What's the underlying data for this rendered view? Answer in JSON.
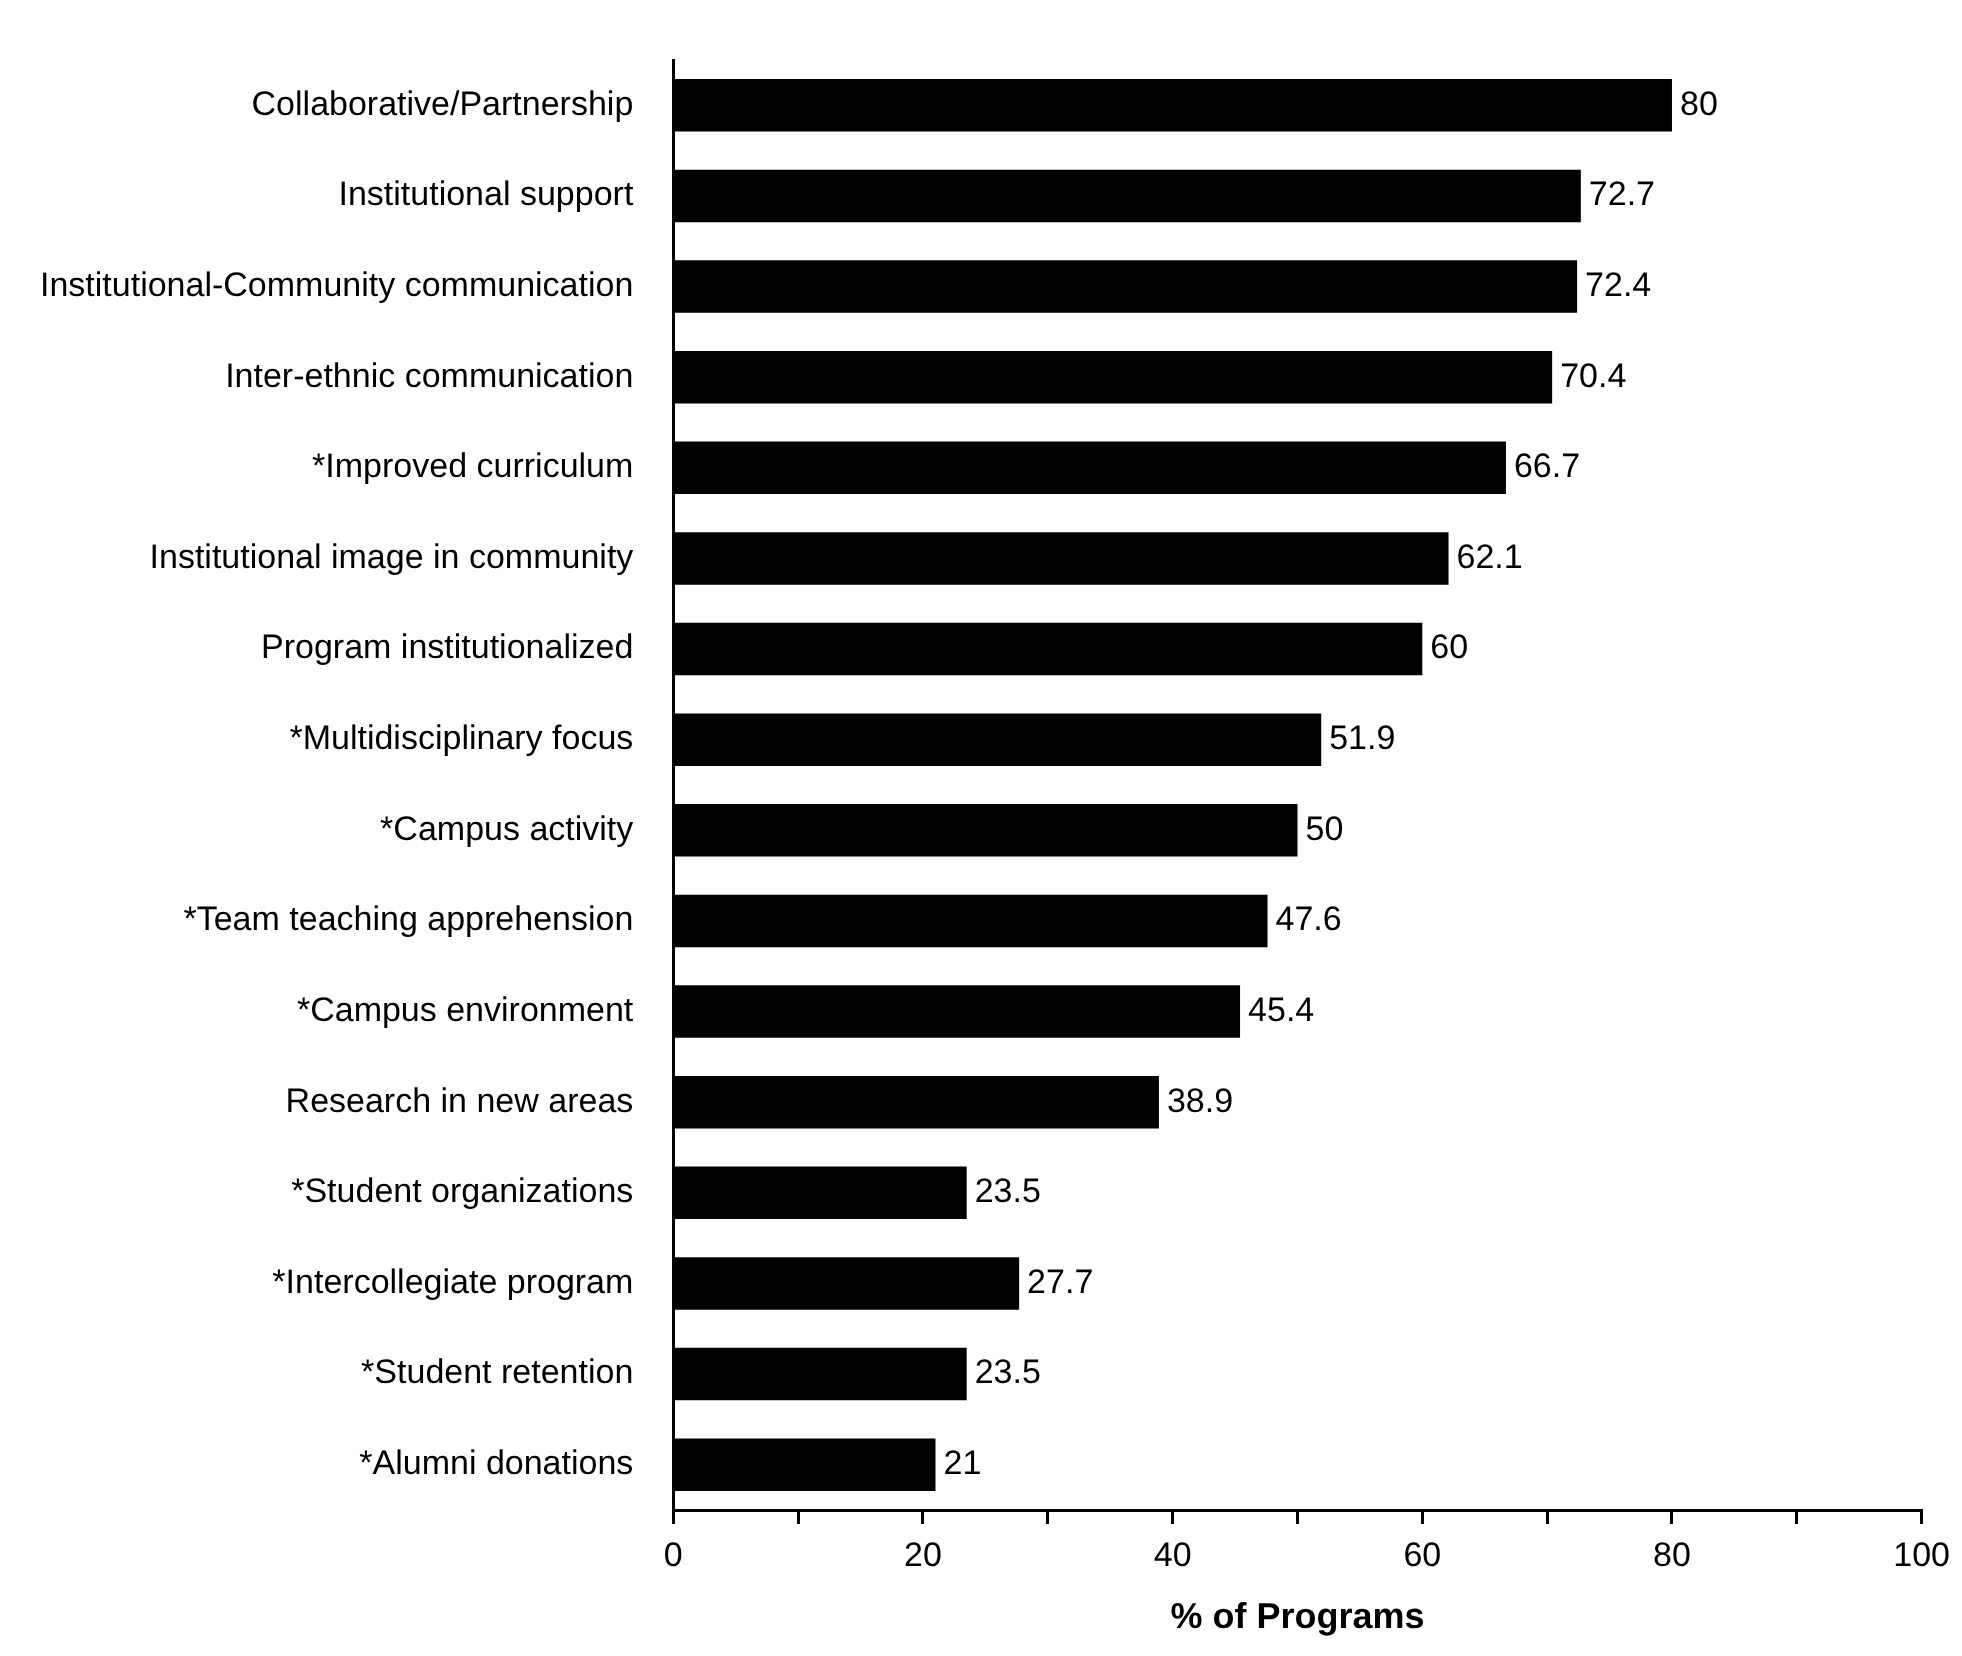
{
  "chart_data": {
    "type": "bar",
    "orientation": "horizontal",
    "xlabel": "% of Programs",
    "categories": [
      "Collaborative/Partnership",
      "Institutional support",
      "Institutional-Community communication",
      "Inter-ethnic communication",
      "*Improved curriculum",
      "Institutional image in community",
      "Program institutionalized",
      "*Multidisciplinary focus",
      "*Campus activity",
      "*Team teaching apprehension",
      "*Campus environment",
      "Research in new areas",
      "*Student organizations",
      "*Intercollegiate program",
      "*Student retention",
      "*Alumni donations"
    ],
    "values": [
      80,
      72.7,
      72.4,
      70.4,
      66.7,
      62.1,
      60,
      51.9,
      50,
      47.6,
      45.4,
      38.9,
      23.5,
      27.7,
      23.5,
      21
    ],
    "color": "#000000",
    "data_labels": true,
    "grid": false,
    "legend": false,
    "xlim": [
      0,
      100
    ],
    "xticks": [
      0,
      {
        "value": 10,
        "label": null
      },
      20,
      {
        "value": 30,
        "label": null
      },
      40,
      {
        "value": 50,
        "label": null
      },
      60,
      {
        "value": 70,
        "label": null
      },
      80,
      {
        "value": 90,
        "label": null
      },
      100
    ]
  }
}
